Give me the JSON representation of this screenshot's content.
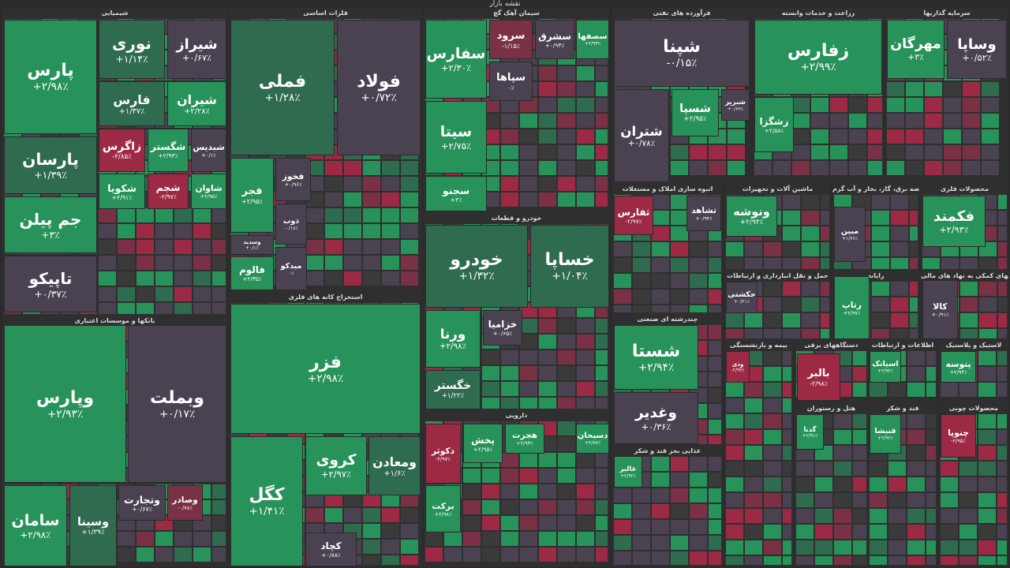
{
  "title": "نقشه بازار",
  "sectors": [
    {
      "name": "شیمیایی",
      "tiles": [
        {
          "symbol": "پارس",
          "change": "+۲/۹۸٪",
          "color": "#27925a"
        },
        {
          "symbol": "پارسان",
          "change": "+۱/۳۹٪",
          "color": "#2f6b4f"
        },
        {
          "symbol": "جم پیلن",
          "change": "+۳٪",
          "color": "#27925a"
        },
        {
          "symbol": "تاپیکو",
          "change": "+۰/۳۷٪",
          "color": "#4a4250"
        },
        {
          "symbol": "نوری",
          "change": "+۱/۱۴٪",
          "color": "#2f6b4f"
        },
        {
          "symbol": "شیراز",
          "change": "+۰/۶۷٪",
          "color": "#4a4250"
        },
        {
          "symbol": "فارس",
          "change": "+۱/۳۷٪",
          "color": "#2f6b4f"
        },
        {
          "symbol": "شیران",
          "change": "+۲/۲۸٪",
          "color": "#27925a"
        },
        {
          "symbol": "زاگرس",
          "change": "-۲/۸۵٪",
          "color": "#9c2a45"
        },
        {
          "symbol": "شگستر",
          "change": "+۲/۹۳٪",
          "color": "#27925a"
        },
        {
          "symbol": "شبدیس",
          "change": "+۰/۱٪",
          "color": "#4a4250"
        },
        {
          "symbol": "شکویا",
          "change": "+۲/۹۱٪",
          "color": "#27925a"
        },
        {
          "symbol": "شجم",
          "change": "-۲/۹۷٪",
          "color": "#9c2a45"
        },
        {
          "symbol": "شاوان",
          "change": "+۲/۹۵٪",
          "color": "#27925a"
        }
      ]
    },
    {
      "name": "بانکها و موسسات اعتباری",
      "tiles": [
        {
          "symbol": "وپارس",
          "change": "+۲/۹۳٪",
          "color": "#27925a"
        },
        {
          "symbol": "وبملت",
          "change": "+۰/۱۷٪",
          "color": "#4a4250"
        },
        {
          "symbol": "سامان",
          "change": "+۲/۹۸٪",
          "color": "#27925a"
        },
        {
          "symbol": "وسینا",
          "change": "+۱/۳۹٪",
          "color": "#2f6b4f"
        },
        {
          "symbol": "وتجارت",
          "change": "+۰/۶۷٪",
          "color": "#4a4250"
        },
        {
          "symbol": "وصادر",
          "change": "-۰/۷۸٪",
          "color": "#7a3145"
        }
      ]
    },
    {
      "name": "فلزات اساسی",
      "tiles": [
        {
          "symbol": "فملی",
          "change": "+۱/۲۸٪",
          "color": "#2f6b4f"
        },
        {
          "symbol": "فولاد",
          "change": "+۰/۷۲٪",
          "color": "#4a4250"
        },
        {
          "symbol": "فجر",
          "change": "+۲/۹۵٪",
          "color": "#27925a"
        },
        {
          "symbol": "وسدید",
          "change": "+۰/۱٪",
          "color": "#4a4250"
        },
        {
          "symbol": "فالوم",
          "change": "+۲/۳۵٪",
          "color": "#27925a"
        },
        {
          "symbol": "فخوز",
          "change": "+۰/۹۶٪",
          "color": "#4a4250"
        },
        {
          "symbol": "ذوب",
          "change": "-۰/۱۸٪",
          "color": "#4a4250"
        },
        {
          "symbol": "میدکو",
          "change": "۰٪",
          "color": "#4a4250"
        }
      ]
    },
    {
      "name": "استخراج کانه های فلزی",
      "tiles": [
        {
          "symbol": "فزر",
          "change": "+۲/۹۸٪",
          "color": "#27925a"
        },
        {
          "symbol": "کگل",
          "change": "+۱/۴۱٪",
          "color": "#27925a"
        },
        {
          "symbol": "کروی",
          "change": "+۲/۹۷٪",
          "color": "#27925a"
        },
        {
          "symbol": "ومعادن",
          "change": "+۱/۶٪",
          "color": "#2f6b4f"
        },
        {
          "symbol": "کچاد",
          "change": "+۰/۸۸٪",
          "color": "#4a4250"
        }
      ]
    },
    {
      "name": "سیمان آهک گچ",
      "tiles": [
        {
          "symbol": "سفارس",
          "change": "+۲/۳۰٪",
          "color": "#27925a"
        },
        {
          "symbol": "سیتا",
          "change": "+۲/۷۵٪",
          "color": "#27925a"
        },
        {
          "symbol": "سجنو",
          "change": "+۳٪",
          "color": "#27925a"
        },
        {
          "symbol": "سرود",
          "change": "-۱/۱۵٪",
          "color": "#7a3145"
        },
        {
          "symbol": "سپاها",
          "change": "۰٪",
          "color": "#4a4250"
        },
        {
          "symbol": "سشرق",
          "change": "+۰/۹۳٪",
          "color": "#4a4250"
        },
        {
          "symbol": "سصفها",
          "change": "+۲/۹۳٪",
          "color": "#27925a"
        }
      ]
    },
    {
      "name": "خودرو و قطعات",
      "tiles": [
        {
          "symbol": "خودرو",
          "change": "+۱/۳۲٪",
          "color": "#2f6b4f"
        },
        {
          "symbol": "خساپا",
          "change": "+۱/۰۴٪",
          "color": "#2f6b4f"
        },
        {
          "symbol": "ورنا",
          "change": "+۲/۹۸٪",
          "color": "#27925a"
        },
        {
          "symbol": "خگستر",
          "change": "+۱/۲۲٪",
          "color": "#2f6b4f"
        },
        {
          "symbol": "خزامیا",
          "change": "+۰/۶۵٪",
          "color": "#4a4250"
        }
      ]
    },
    {
      "name": "دارویی",
      "tiles": [
        {
          "symbol": "دکوثر",
          "change": "-۲/۹۷٪",
          "color": "#9c2a45"
        },
        {
          "symbol": "پخش",
          "change": "+۲/۹۵٪",
          "color": "#27925a"
        },
        {
          "symbol": "برکت",
          "change": "+۲/۹۸٪",
          "color": "#27925a"
        },
        {
          "symbol": "هجرت",
          "change": "+۲/۹۳٪",
          "color": "#27925a"
        },
        {
          "symbol": "دسبحان",
          "change": "+۲/۸۷٪",
          "color": "#27925a"
        }
      ]
    },
    {
      "name": "فرآورده های نفتی",
      "tiles": [
        {
          "symbol": "شپنا",
          "change": "-۰/۱۵٪",
          "color": "#4a4250"
        },
        {
          "symbol": "شتران",
          "change": "+۰/۷۸٪",
          "color": "#4a4250"
        },
        {
          "symbol": "شسپا",
          "change": "+۲/۹۵٪",
          "color": "#27925a"
        },
        {
          "symbol": "شبریز",
          "change": "+۰/۶۳٪",
          "color": "#4a4250"
        }
      ]
    },
    {
      "name": "انبوه سازی املاک و مستغلات",
      "tiles": [
        {
          "symbol": "ثفارس",
          "change": "-۲/۹۷٪",
          "color": "#9c2a45"
        },
        {
          "symbol": "ثشاهد",
          "change": "+۰/۹۴٪",
          "color": "#4a4250"
        }
      ]
    },
    {
      "name": "چندرشته ای صنعتی",
      "tiles": [
        {
          "symbol": "شستا",
          "change": "+۲/۹۴٪",
          "color": "#27925a"
        },
        {
          "symbol": "وغدیر",
          "change": "+۰/۳۶٪",
          "color": "#4a4250"
        }
      ]
    },
    {
      "name": "غذایی بجز قند و شکر",
      "tiles": [
        {
          "symbol": "غالبر",
          "change": "+۲/۹۲٪",
          "color": "#27925a"
        }
      ]
    },
    {
      "name": "زراعت و خدمات وابسته",
      "tiles": [
        {
          "symbol": "زفارس",
          "change": "+۲/۹۹٪",
          "color": "#27925a"
        },
        {
          "symbol": "زشگزا",
          "change": "+۲/۵۸٪",
          "color": "#27925a"
        }
      ]
    },
    {
      "name": "سرمایه گذاریها",
      "tiles": [
        {
          "symbol": "مهرگان",
          "change": "+۳٪",
          "color": "#27925a"
        },
        {
          "symbol": "وساپا",
          "change": "+۰/۵۲٪",
          "color": "#4a4250"
        }
      ]
    },
    {
      "name": "ماشین آلات و تجهیزات",
      "tiles": [
        {
          "symbol": "ونوشه",
          "change": "+۲/۹۴٪",
          "color": "#27925a"
        }
      ]
    },
    {
      "name": "عرضه برق، گاز، بخار و آب گرم",
      "tiles": [
        {
          "symbol": "مبین",
          "change": "+۱/۶۶٪",
          "color": "#4a4250"
        }
      ]
    },
    {
      "name": "محصولات فلزی",
      "tiles": [
        {
          "symbol": "فکمند",
          "change": "+۲/۹۳٪",
          "color": "#27925a"
        }
      ]
    },
    {
      "name": "رایانه",
      "tiles": [
        {
          "symbol": "رتاپ",
          "change": "+۲/۹۷٪",
          "color": "#27925a"
        }
      ]
    },
    {
      "name": "فعالیتهای کمکی به نهاد های مالی",
      "tiles": [
        {
          "symbol": "کالا",
          "change": "+۰/۹۱٪",
          "color": "#4a4250"
        }
      ]
    },
    {
      "name": "دستگاههای برقی",
      "tiles": [
        {
          "symbol": "بالبر",
          "change": "-۲/۹۸٪",
          "color": "#9c2a45"
        }
      ]
    },
    {
      "name": "حمل و نقل انبارداری و ارتباطات",
      "tiles": [
        {
          "symbol": "حکشتی",
          "change": "+۰/۲۱٪",
          "color": "#4a4250"
        }
      ]
    },
    {
      "name": "بیمه و بازنشستگی",
      "tiles": [
        {
          "symbol": "ودی",
          "change": "-۲/۹۳٪",
          "color": "#9c2a45"
        }
      ]
    },
    {
      "name": "هتل و رستوران",
      "tiles": [
        {
          "symbol": "گدنا",
          "change": "+۲/۹۱٪",
          "color": "#27925a"
        }
      ]
    },
    {
      "name": "اطلاعات و ارتباطات",
      "tiles": [
        {
          "symbol": "اسیاتک",
          "change": "+۲/۹۴٪",
          "color": "#27925a"
        }
      ]
    },
    {
      "name": "لاستیک و پلاستیک",
      "tiles": [
        {
          "symbol": "پتوسه",
          "change": "+۲/۹۳٪",
          "color": "#27925a"
        }
      ]
    },
    {
      "name": "قند و شکر",
      "tiles": [
        {
          "symbol": "قنیشا",
          "change": "+۲/۹۲٪",
          "color": "#27925a"
        }
      ]
    },
    {
      "name": "محصولات چوبی",
      "tiles": [
        {
          "symbol": "چنوپا",
          "change": "-۲/۹۵٪",
          "color": "#9c2a45"
        }
      ]
    }
  ]
}
